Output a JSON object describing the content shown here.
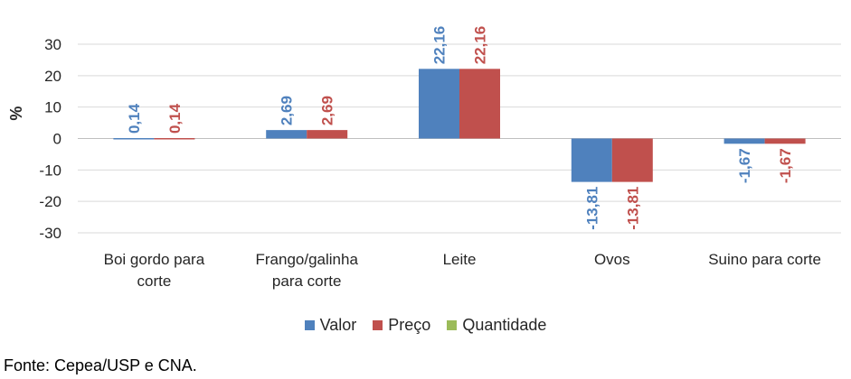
{
  "chart_data": {
    "type": "bar",
    "title": "",
    "xlabel": "",
    "ylabel": "%",
    "ylim": [
      -30,
      30
    ],
    "yticks": [
      -30,
      -20,
      -10,
      0,
      10,
      20,
      30
    ],
    "grid": true,
    "legend_position": "bottom",
    "categories": [
      [
        "Boi gordo para",
        "corte"
      ],
      [
        "Frango/galinha",
        "para corte"
      ],
      [
        "Leite"
      ],
      [
        "Ovos"
      ],
      [
        "Suino para corte"
      ]
    ],
    "series": [
      {
        "name": "Valor",
        "color": "#4f81bd",
        "values": [
          0.14,
          2.69,
          22.16,
          -13.81,
          -1.67
        ],
        "labels": [
          "0,14",
          "2,69",
          "22,16",
          "-13,81",
          "-1,67"
        ]
      },
      {
        "name": "Preço",
        "color": "#c0504d",
        "values": [
          0.14,
          2.69,
          22.16,
          -13.81,
          -1.67
        ],
        "labels": [
          "0,14",
          "2,69",
          "22,16",
          "-13,81",
          "-1,67"
        ]
      },
      {
        "name": "Quantidade",
        "color": "#9bbb59",
        "values": [
          0,
          0,
          0,
          0,
          0
        ],
        "labels": []
      }
    ]
  },
  "source": "Fonte: Cepea/USP e CNA."
}
